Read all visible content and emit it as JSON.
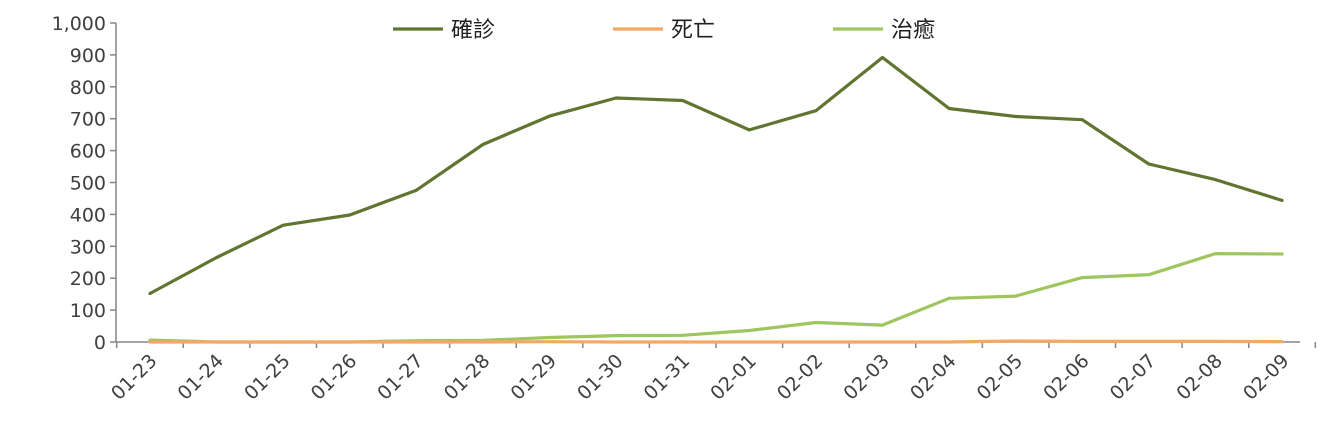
{
  "chart_data": {
    "type": "line",
    "title": "",
    "xlabel": "",
    "ylabel": "",
    "categories": [
      "01-23",
      "01-24",
      "01-25",
      "01-26",
      "01-27",
      "01-28",
      "01-29",
      "01-30",
      "01-31",
      "02-01",
      "02-02",
      "02-03",
      "02-04",
      "02-05",
      "02-06",
      "02-07",
      "02-08",
      "02-09"
    ],
    "ylim": [
      0,
      1000
    ],
    "yticks": [
      0,
      100,
      200,
      300,
      400,
      500,
      600,
      700,
      800,
      900,
      1000
    ],
    "ytick_labels": [
      "0",
      "100",
      "200",
      "300",
      "400",
      "500",
      "600",
      "700",
      "800",
      "900",
      "1,000"
    ],
    "grid": false,
    "legend_position": "top",
    "series": [
      {
        "name": "確診",
        "color": "#5f7530",
        "values": [
          152,
          265,
          366,
          398,
          476,
          619,
          708,
          765,
          757,
          665,
          725,
          892,
          732,
          707,
          697,
          558,
          509,
          444
        ]
      },
      {
        "name": "死亡",
        "color": "#f5a865",
        "values": [
          0,
          0,
          0,
          0,
          0,
          0,
          1,
          0,
          0,
          0,
          0,
          0,
          0,
          3,
          2,
          2,
          2,
          1
        ]
      },
      {
        "name": "治癒",
        "color": "#9ec55e",
        "values": [
          6,
          0,
          0,
          0,
          4,
          5,
          14,
          20,
          21,
          36,
          61,
          53,
          137,
          144,
          202,
          211,
          277,
          276
        ]
      }
    ]
  }
}
